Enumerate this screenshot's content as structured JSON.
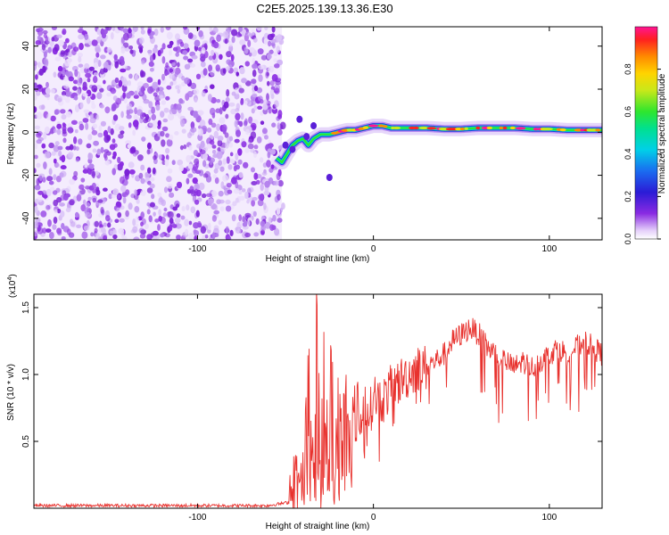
{
  "title": "C2E5.2025.139.13.36.E30",
  "chart_data": [
    {
      "type": "heatmap",
      "xlabel": "Height of straight line (km)",
      "ylabel": "Frequency (Hz)",
      "xlim": [
        -193,
        130
      ],
      "ylim": [
        -50,
        49
      ],
      "xticks": [
        -100,
        0,
        100
      ],
      "xtick_labels": [
        "-100",
        "0",
        "100"
      ],
      "yticks": [
        -40,
        -20,
        0,
        20,
        40
      ],
      "ytick_labels": [
        "-40",
        "-20",
        "0",
        "20",
        "40"
      ],
      "noise_region_x": [
        -193,
        -52
      ],
      "signal_track": {
        "x": [
          -55,
          -52,
          -49,
          -46,
          -43,
          -40,
          -37,
          -34,
          -30,
          -25,
          -20,
          -15,
          -10,
          -5,
          0,
          5,
          10,
          20,
          30,
          40,
          50,
          60,
          70,
          80,
          90,
          100,
          110,
          120,
          130
        ],
        "y": [
          -12,
          -14,
          -10,
          -6,
          -4,
          -3,
          -6,
          -3,
          -1,
          -1,
          0,
          1,
          1,
          2,
          3,
          3,
          2,
          2,
          2,
          1.5,
          1.5,
          2,
          2,
          2,
          1.5,
          1.5,
          1,
          1,
          1
        ]
      },
      "colorbar": {
        "label": "Normalized spectral amplitude",
        "range": [
          0,
          1
        ],
        "ticks": [
          "0.0",
          "0.2",
          "0.4",
          "0.6",
          "0.8"
        ],
        "tick_values": [
          0,
          0.2,
          0.4,
          0.6,
          0.8
        ]
      }
    },
    {
      "type": "line",
      "xlabel": "Height of straight line (km)",
      "ylabel": "SNR (10 * v/v)",
      "multiplier": "(x10",
      "multiplier_exp": "4",
      "multiplier_close": ")",
      "xlim": [
        -193,
        130
      ],
      "ylim": [
        0,
        1.6
      ],
      "xticks": [
        -100,
        0,
        100
      ],
      "xtick_labels": [
        "-100",
        "0",
        "100"
      ],
      "yticks": [
        0.5,
        1.0,
        1.5
      ],
      "ytick_labels": [
        "0.5",
        "1.0",
        "1.5"
      ],
      "color": "#e8322e",
      "series": [
        {
          "x": [
            -193,
            -150,
            -100,
            -60,
            -45,
            -42,
            -38,
            -36,
            -34,
            -32,
            -30,
            -28,
            -26,
            -24,
            -22,
            -20,
            -18,
            -15,
            -12,
            -10,
            -8,
            -5,
            -2,
            0,
            5,
            10,
            15,
            20,
            25,
            30,
            35,
            40,
            45,
            50,
            55,
            60,
            65,
            70,
            75,
            80,
            85,
            90,
            95,
            100,
            105,
            110,
            115,
            120,
            125,
            130
          ],
          "y": [
            0.02,
            0.02,
            0.02,
            0.02,
            0.05,
            0.2,
            0.6,
            1.0,
            0.3,
            1.6,
            0.1,
            1.3,
            0.2,
            1.0,
            0.3,
            0.8,
            0.5,
            0.7,
            0.6,
            1.0,
            0.6,
            0.8,
            0.7,
            0.85,
            0.8,
            0.9,
            0.95,
            1.0,
            1.05,
            1.05,
            1.1,
            1.15,
            1.25,
            1.3,
            1.35,
            1.3,
            1.2,
            1.15,
            1.1,
            1.05,
            1.1,
            1.05,
            1.1,
            1.15,
            1.2,
            1.15,
            1.2,
            1.25,
            1.2,
            1.15
          ]
        }
      ]
    }
  ]
}
